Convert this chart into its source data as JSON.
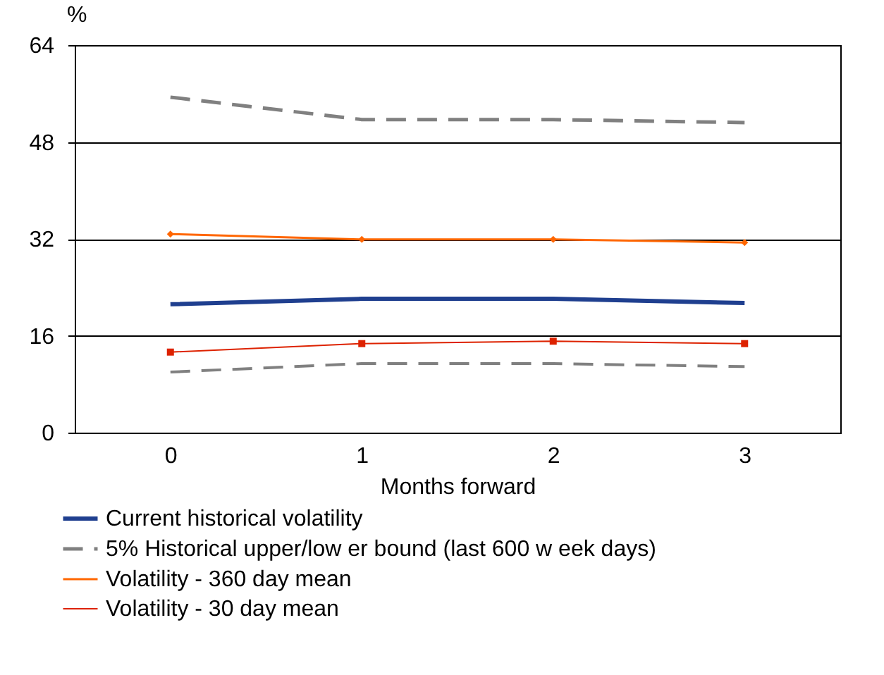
{
  "chart_data": {
    "type": "line",
    "xlabel": "Months forward",
    "ylabel": "%",
    "categories": [
      "0",
      "1",
      "2",
      "3"
    ],
    "ylim": [
      0,
      64
    ],
    "yticks": [
      0,
      16,
      32,
      48,
      64
    ],
    "grid": "y",
    "legend": "bottom",
    "series": [
      {
        "name": "Current historical volatility",
        "color": "#1f3f8f",
        "line_style": "solid",
        "marker": "none",
        "values": [
          21.2,
          22.1,
          22.1,
          21.4
        ]
      },
      {
        "name": "5% Historical upper/low er bound (last 600 w eek days)",
        "color": "#808080",
        "line_style": "dashed",
        "marker": "none",
        "values": [
          55.4,
          51.7,
          51.7,
          51.2
        ]
      },
      {
        "color": "#808080",
        "line_style": "dashed",
        "marker": "none",
        "values": [
          10.0,
          11.4,
          11.4,
          10.9
        ]
      },
      {
        "name": "Volatility - 360 day mean",
        "color": "#ff6600",
        "line_style": "solid",
        "marker": "diamond",
        "values": [
          32.8,
          31.9,
          31.9,
          31.4
        ]
      },
      {
        "name": "Volatility - 30 day mean",
        "color": "#dd2200",
        "line_style": "solid",
        "marker": "square",
        "values": [
          13.3,
          14.7,
          15.1,
          14.7
        ]
      }
    ]
  }
}
